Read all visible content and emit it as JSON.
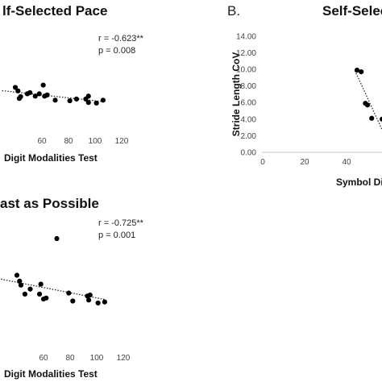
{
  "chart_data": [
    {
      "type": "scatter",
      "title": "lf-Selected Pace",
      "panel_label": "",
      "xlabel": "Digit Modalities Test",
      "ylabel": "",
      "xlim": [
        0,
        120
      ],
      "x_ticks": [
        "60",
        "80",
        "100",
        "120"
      ],
      "annotation": {
        "r": "r = -0.623**",
        "p": "p = 0.008"
      },
      "trendline": true,
      "series": [
        {
          "points": [
            [
              40,
              9.1
            ],
            [
              42,
              8.5
            ],
            [
              43,
              7.2
            ],
            [
              44,
              7.5
            ],
            [
              49,
              8.0
            ],
            [
              51,
              8.2
            ],
            [
              55,
              7.6
            ],
            [
              58,
              8.0
            ],
            [
              61,
              9.5
            ],
            [
              62,
              7.6
            ],
            [
              64,
              7.8
            ],
            [
              70,
              6.9
            ],
            [
              81,
              6.8
            ],
            [
              86,
              7.1
            ],
            [
              93,
              7.1
            ],
            [
              95,
              7.6
            ],
            [
              95,
              6.5
            ],
            [
              101,
              6.4
            ],
            [
              106,
              6.9
            ]
          ]
        }
      ]
    },
    {
      "type": "scatter",
      "title": "Self-Selec",
      "panel_label": "B.",
      "xlabel": "Symbol Digit l",
      "ylabel": "Stride Length CoV",
      "xlim": [
        0,
        70
      ],
      "ylim": [
        0,
        14
      ],
      "y_ticks": [
        "14.00",
        "12.00",
        "10.00",
        "8.00",
        "6.00",
        "4.00",
        "2.00",
        "0.00"
      ],
      "x_ticks": [
        "0",
        "20",
        "40"
      ],
      "trendline": true,
      "series": [
        {
          "points": [
            [
              45,
              9.9
            ],
            [
              47,
              9.7
            ],
            [
              49,
              5.9
            ],
            [
              50,
              5.7
            ],
            [
              52,
              4.1
            ],
            [
              57,
              4.0
            ]
          ]
        }
      ]
    },
    {
      "type": "scatter",
      "title": "ast as Possible",
      "panel_label": "",
      "xlabel": "Digit Modalities Test",
      "ylabel": "",
      "xlim": [
        0,
        120
      ],
      "x_ticks": [
        "60",
        "80",
        "100",
        "120"
      ],
      "annotation": {
        "r": "r = -0.725**",
        "p": "p = 0.001"
      },
      "trendline": true,
      "series": [
        {
          "points": [
            [
              40,
              7.6
            ],
            [
              42,
              7.0
            ],
            [
              43,
              6.6
            ],
            [
              46,
              5.7
            ],
            [
              50,
              6.2
            ],
            [
              57,
              5.7
            ],
            [
              58,
              6.7
            ],
            [
              60,
              5.2
            ],
            [
              62,
              5.3
            ],
            [
              70,
              11.3
            ],
            [
              79,
              5.8
            ],
            [
              82,
              5.0
            ],
            [
              93,
              5.5
            ],
            [
              94,
              5.1
            ],
            [
              95,
              5.6
            ],
            [
              101,
              4.8
            ],
            [
              106,
              4.9
            ]
          ]
        }
      ]
    }
  ]
}
